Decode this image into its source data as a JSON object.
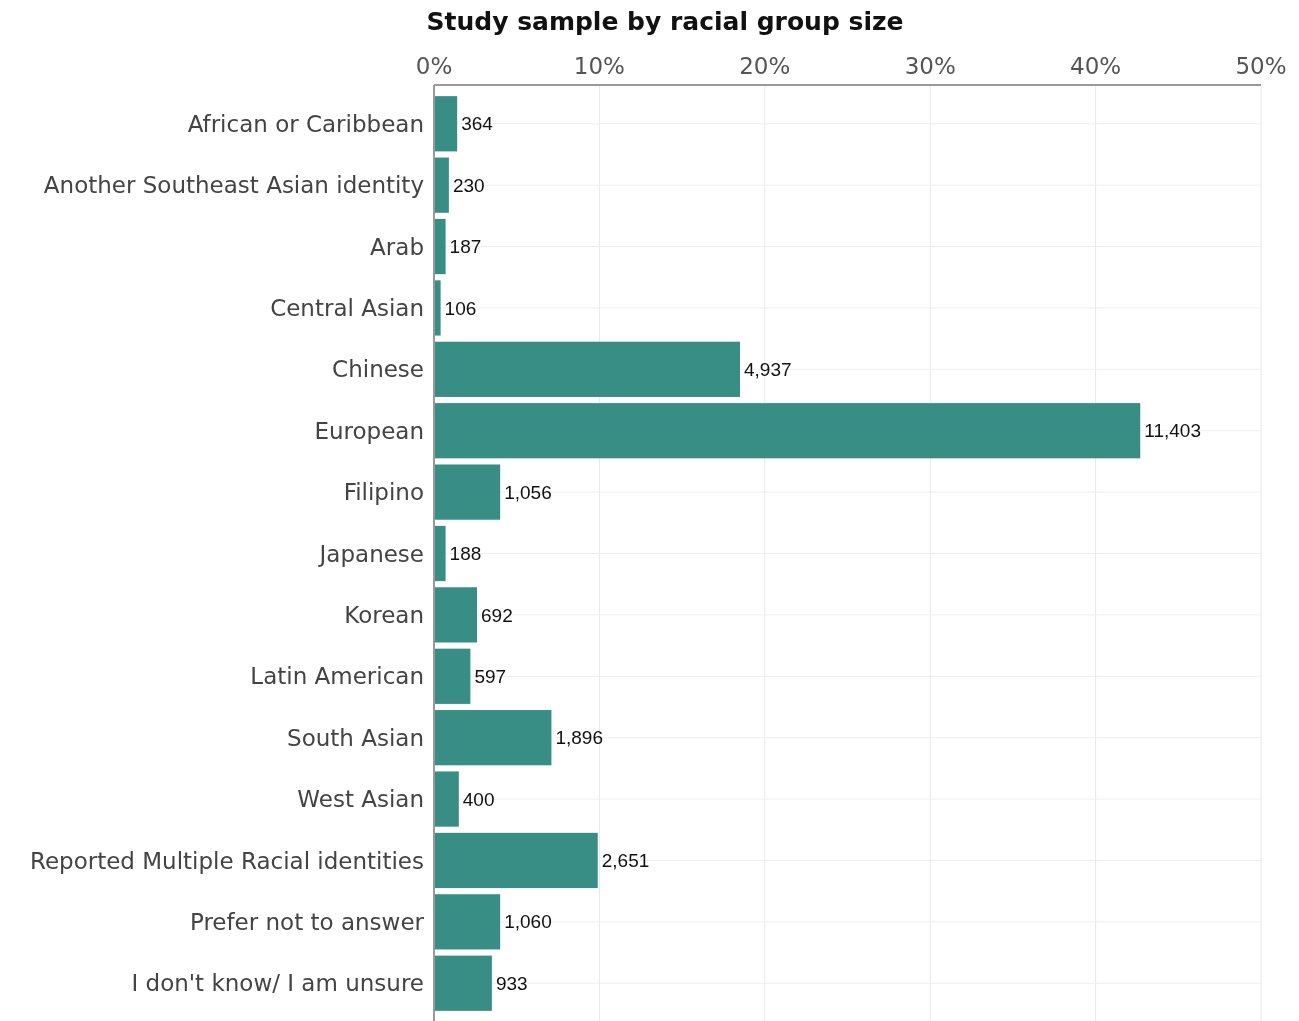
{
  "chart_data": {
    "type": "bar",
    "orientation": "horizontal",
    "title": "Study sample by racial group size",
    "categories": [
      "African or Caribbean",
      "Another Southeast Asian identity",
      "Arab",
      "Central Asian",
      "Chinese",
      "European",
      "Filipino",
      "Japanese",
      "Korean",
      "Latin American",
      "South Asian",
      "West Asian",
      "Reported Multiple Racial identities",
      "Prefer not to answer",
      "I don't know/ I am unsure"
    ],
    "values": [
      1.4,
      0.9,
      0.7,
      0.4,
      18.5,
      42.7,
      4.0,
      0.7,
      2.6,
      2.2,
      7.1,
      1.5,
      9.9,
      4.0,
      3.5
    ],
    "annotations": [
      {
        "text": "364",
        "x": 1.4,
        "y": "African or Caribbean"
      },
      {
        "text": "230",
        "x": 0.9,
        "y": "Another Southeast Asian identity"
      },
      {
        "text": "187",
        "x": 0.7,
        "y": "Arab"
      },
      {
        "text": "106",
        "x": 0.4,
        "y": "Central Asian"
      },
      {
        "text": "4,937",
        "x": 18.5,
        "y": "Chinese"
      },
      {
        "text": "11,403",
        "x": 42.7,
        "y": "European"
      },
      {
        "text": "1,056",
        "x": 4.0,
        "y": "Filipino"
      },
      {
        "text": "188",
        "x": 0.7,
        "y": "Japanese"
      },
      {
        "text": "692",
        "x": 2.6,
        "y": "Korean"
      },
      {
        "text": "597",
        "x": 2.2,
        "y": "Latin American"
      },
      {
        "text": "1,896",
        "x": 7.1,
        "y": "South Asian"
      },
      {
        "text": "400",
        "x": 1.5,
        "y": "West Asian"
      },
      {
        "text": "2,651",
        "x": 9.9,
        "y": "Reported Multiple Racial identities"
      },
      {
        "text": "1,060",
        "x": 4.0,
        "y": "Prefer not to answer"
      },
      {
        "text": "933",
        "x": 3.5,
        "y": "I don't know/ I am unsure"
      }
    ],
    "color": "#348c82",
    "xlim": [
      0,
      50
    ],
    "xticks": [
      {
        "value": 0,
        "label": "0%"
      },
      {
        "value": 10,
        "label": "10%"
      },
      {
        "value": 20,
        "label": "20%"
      },
      {
        "value": 30,
        "label": "30%"
      },
      {
        "value": 40,
        "label": "40%"
      },
      {
        "value": 50,
        "label": "50%"
      }
    ],
    "grid": true
  }
}
